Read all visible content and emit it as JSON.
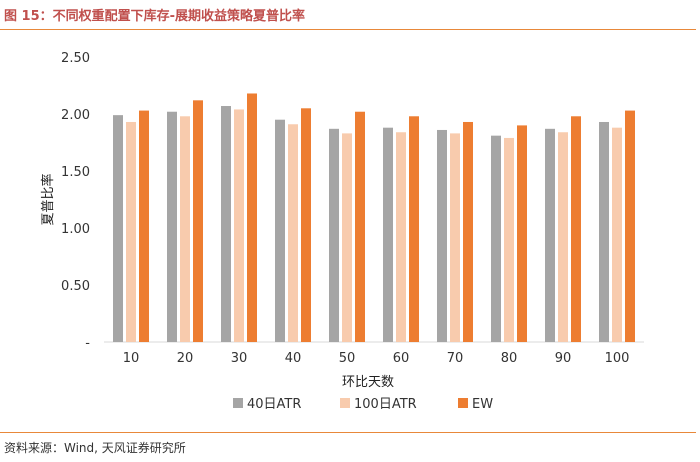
{
  "header": {
    "title": "图 15：不同权重配置下库存-展期收益策略夏普比率"
  },
  "footer": {
    "source": "资料来源：Wind, 天风证券研究所"
  },
  "chart_data": {
    "type": "bar",
    "title": "",
    "xlabel": "环比天数",
    "ylabel": "夏普比率",
    "categories": [
      "10",
      "20",
      "30",
      "40",
      "50",
      "60",
      "70",
      "80",
      "90",
      "100"
    ],
    "yticks": [
      "-",
      "0.50",
      "1.00",
      "1.50",
      "2.00",
      "2.50"
    ],
    "ylim": [
      0,
      2.5
    ],
    "grid": false,
    "legend_position": "bottom",
    "series": [
      {
        "name": "40日ATR",
        "color": "#a5a5a5",
        "values": [
          1.99,
          2.02,
          2.07,
          1.95,
          1.87,
          1.88,
          1.86,
          1.81,
          1.87,
          1.93
        ]
      },
      {
        "name": "100日ATR",
        "color": "#f8cbad",
        "values": [
          1.93,
          1.98,
          2.04,
          1.91,
          1.83,
          1.84,
          1.83,
          1.79,
          1.84,
          1.88
        ]
      },
      {
        "name": "EW",
        "color": "#ed7d31",
        "values": [
          2.03,
          2.12,
          2.18,
          2.05,
          2.02,
          1.98,
          1.93,
          1.9,
          1.98,
          2.03
        ]
      }
    ]
  }
}
